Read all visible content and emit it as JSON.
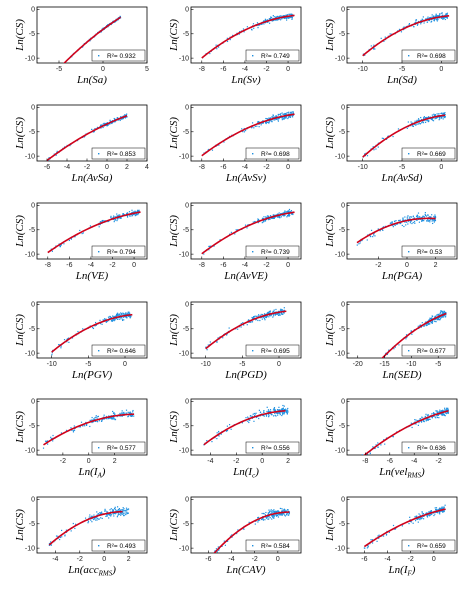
{
  "style": {
    "point_color": "#1e90e0",
    "fit_color": "#d0021b",
    "axis_color": "#000000"
  },
  "chart_data": [
    {
      "type": "scatter",
      "xlabel": "Ln(Sa)",
      "ylabel": "Ln(CS)",
      "r2_label": "R²= 0.932",
      "xticks": [
        -5,
        0,
        5
      ],
      "xlim": [
        -7.5,
        5
      ],
      "yticks": [
        -10,
        -5,
        0
      ],
      "ylim": [
        -11,
        0.5
      ],
      "fit": {
        "a": -4.1,
        "b": 1.35,
        "c": -0.05,
        "x_range": [
          -6,
          2
        ]
      },
      "cloud": {
        "x_min": -2,
        "x_max": 2,
        "noise": 0.25,
        "n": 160
      }
    },
    {
      "type": "scatter",
      "xlabel": "Ln(Sv)",
      "ylabel": "Ln(CS)",
      "r2_label": "R²= 0.749",
      "xticks": [
        -8,
        -6,
        -4,
        -2,
        0
      ],
      "xlim": [
        -9,
        1.2
      ],
      "yticks": [
        -10,
        -5,
        0
      ],
      "ylim": [
        -11,
        0.5
      ],
      "fit": {
        "a": -1.4,
        "b": 0.35,
        "c": -0.09,
        "x_range": [
          -8,
          0.6
        ]
      },
      "cloud": {
        "x_min": -3.5,
        "x_max": 0.5,
        "noise": 0.7,
        "n": 160
      }
    },
    {
      "type": "scatter",
      "xlabel": "Ln(Sd)",
      "ylabel": "Ln(CS)",
      "r2_label": "R²= 0.698",
      "xticks": [
        -10,
        -5,
        0
      ],
      "xlim": [
        -12,
        2
      ],
      "yticks": [
        -10,
        -5,
        0
      ],
      "ylim": [
        -11,
        0.5
      ],
      "fit": {
        "a": -1.5,
        "b": 0.25,
        "c": -0.055,
        "x_range": [
          -10,
          1
        ]
      },
      "cloud": {
        "x_min": -4.5,
        "x_max": 0.8,
        "noise": 0.8,
        "n": 160
      }
    },
    {
      "type": "scatter",
      "xlabel": "Ln(AvSa)",
      "ylabel": "Ln(CS)",
      "r2_label": "R²= 0.853",
      "xticks": [
        -6,
        -4,
        -2,
        0,
        2,
        4
      ],
      "xlim": [
        -7,
        4
      ],
      "yticks": [
        -10,
        -5,
        0
      ],
      "ylim": [
        -11,
        0.5
      ],
      "fit": {
        "a": -3.4,
        "b": 0.95,
        "c": -0.05,
        "x_range": [
          -6,
          2
        ]
      },
      "cloud": {
        "x_min": -2,
        "x_max": 2,
        "noise": 0.45,
        "n": 160
      }
    },
    {
      "type": "scatter",
      "xlabel": "Ln(AvSv)",
      "ylabel": "Ln(CS)",
      "r2_label": "R²= 0.698",
      "xticks": [
        -8,
        -6,
        -4,
        -2,
        0
      ],
      "xlim": [
        -9,
        1.2
      ],
      "yticks": [
        -10,
        -5,
        0
      ],
      "ylim": [
        -11,
        0.5
      ],
      "fit": {
        "a": -1.6,
        "b": 0.4,
        "c": -0.08,
        "x_range": [
          -8,
          0.6
        ]
      },
      "cloud": {
        "x_min": -3.5,
        "x_max": 0.5,
        "noise": 0.8,
        "n": 160
      }
    },
    {
      "type": "scatter",
      "xlabel": "Ln(AvSd)",
      "ylabel": "Ln(CS)",
      "r2_label": "R²= 0.669",
      "xticks": [
        -10,
        -5,
        0
      ],
      "xlim": [
        -12,
        2
      ],
      "yticks": [
        -10,
        -5,
        0
      ],
      "ylim": [
        -11,
        0.5
      ],
      "fit": {
        "a": -1.7,
        "b": 0.25,
        "c": -0.06,
        "x_range": [
          -10,
          0.5
        ]
      },
      "cloud": {
        "x_min": -4.5,
        "x_max": 0.5,
        "noise": 0.85,
        "n": 160
      }
    },
    {
      "type": "scatter",
      "xlabel": "Ln(VE)",
      "ylabel": "Ln(CS)",
      "r2_label": "R²= 0.794",
      "xticks": [
        -8,
        -6,
        -4,
        -2,
        0
      ],
      "xlim": [
        -9,
        1.2
      ],
      "yticks": [
        -10,
        -5,
        0
      ],
      "ylim": [
        -11,
        0.5
      ],
      "fit": {
        "a": -1.6,
        "b": 0.45,
        "c": -0.07,
        "x_range": [
          -8,
          0.6
        ]
      },
      "cloud": {
        "x_min": -3.5,
        "x_max": 0.5,
        "noise": 0.6,
        "n": 160
      }
    },
    {
      "type": "scatter",
      "xlabel": "Ln(AvVE)",
      "ylabel": "Ln(CS)",
      "r2_label": "R²= 0.739",
      "xticks": [
        -8,
        -6,
        -4,
        -2,
        0
      ],
      "xlim": [
        -9,
        1.2
      ],
      "yticks": [
        -10,
        -5,
        0
      ],
      "ylim": [
        -11,
        0.5
      ],
      "fit": {
        "a": -1.6,
        "b": 0.4,
        "c": -0.08,
        "x_range": [
          -8,
          0.6
        ]
      },
      "cloud": {
        "x_min": -3.5,
        "x_max": 0.5,
        "noise": 0.7,
        "n": 160
      }
    },
    {
      "type": "scatter",
      "xlabel": "Ln(PGA)",
      "ylabel": "Ln(CS)",
      "r2_label": "R²= 0.53",
      "xticks": [
        -2,
        0,
        2
      ],
      "xlim": [
        -4.2,
        3.5
      ],
      "yticks": [
        -10,
        -5,
        0
      ],
      "ylim": [
        -11,
        0.5
      ],
      "fit": {
        "a": -3.1,
        "b": 0.6,
        "c": -0.2,
        "x_range": [
          -3.5,
          2
        ]
      },
      "cloud": {
        "x_min": -1.5,
        "x_max": 2,
        "noise": 1.0,
        "n": 160
      }
    },
    {
      "type": "scatter",
      "xlabel": "Ln(PGV)",
      "ylabel": "Ln(CS)",
      "r2_label": "R²= 0.646",
      "xticks": [
        -10,
        -5,
        0
      ],
      "xlim": [
        -12,
        3
      ],
      "yticks": [
        -10,
        -5,
        0
      ],
      "ylim": [
        -11,
        0.5
      ],
      "fit": {
        "a": -2.3,
        "b": 0.25,
        "c": -0.05,
        "x_range": [
          -10,
          1
        ]
      },
      "cloud": {
        "x_min": -4.5,
        "x_max": 0.8,
        "noise": 0.85,
        "n": 160
      }
    },
    {
      "type": "scatter",
      "xlabel": "Ln(PGD)",
      "ylabel": "Ln(CS)",
      "r2_label": "R²= 0.695",
      "xticks": [
        -10,
        -5,
        0
      ],
      "xlim": [
        -12,
        3
      ],
      "yticks": [
        -10,
        -5,
        0
      ],
      "ylim": [
        -11,
        0.5
      ],
      "fit": {
        "a": -1.6,
        "b": 0.25,
        "c": -0.05,
        "x_range": [
          -10,
          1
        ]
      },
      "cloud": {
        "x_min": -5,
        "x_max": 0.8,
        "noise": 0.8,
        "n": 160
      }
    },
    {
      "type": "scatter",
      "xlabel": "Ln(SED)",
      "ylabel": "Ln(CS)",
      "r2_label": "R²= 0.677",
      "xticks": [
        -20,
        -15,
        -10,
        -5
      ],
      "xlim": [
        -22,
        -1.5
      ],
      "yticks": [
        -10,
        -5,
        0
      ],
      "ylim": [
        -11,
        0.5
      ],
      "fit": {
        "a": -0.8,
        "b": 0.2,
        "c": -0.03,
        "x_range": [
          -16,
          -3.5
        ]
      },
      "cloud": {
        "x_min": -9,
        "x_max": -3.5,
        "noise": 0.85,
        "n": 160
      }
    },
    {
      "type": "scatter",
      "xlabel": "Ln(I",
      "xsub": "A",
      "xsuffix": ")",
      "ylabel": "Ln(CS)",
      "r2_label": "R²= 0.577",
      "xticks": [
        -2,
        0,
        2
      ],
      "xlim": [
        -4,
        4.5
      ],
      "yticks": [
        -10,
        -5,
        0
      ],
      "ylim": [
        -11,
        0.5
      ],
      "fit": {
        "a": -4.3,
        "b": 0.9,
        "c": -0.12,
        "x_range": [
          -3.5,
          3.5
        ]
      },
      "cloud": {
        "x_min": -1,
        "x_max": 3.5,
        "noise": 0.95,
        "n": 160
      }
    },
    {
      "type": "scatter",
      "xlabel": "Ln(I",
      "xsub": "c",
      "xsuffix": ")",
      "ylabel": "Ln(CS)",
      "r2_label": "R²= 0.556",
      "xticks": [
        -4,
        -2,
        0,
        2
      ],
      "xlim": [
        -5.5,
        3
      ],
      "yticks": [
        -10,
        -5,
        0
      ],
      "ylim": [
        -11,
        0.5
      ],
      "fit": {
        "a": -2.7,
        "b": 0.7,
        "c": -0.15,
        "x_range": [
          -4.5,
          1.8
        ]
      },
      "cloud": {
        "x_min": -1.5,
        "x_max": 2,
        "noise": 1.0,
        "n": 160
      }
    },
    {
      "type": "scatter",
      "xlabel": "Ln(vel",
      "xsub": "RMS",
      "xsuffix": ")",
      "ylabel": "Ln(CS)",
      "r2_label": "R²= 0.636",
      "xticks": [
        -8,
        -6,
        -4,
        -2
      ],
      "xlim": [
        -9.5,
        -0.5
      ],
      "yticks": [
        -10,
        -5,
        0
      ],
      "ylim": [
        -11,
        0.5
      ],
      "fit": {
        "a": -1.3,
        "b": 0.4,
        "c": -0.1,
        "x_range": [
          -8.5,
          -1.2
        ]
      },
      "cloud": {
        "x_min": -5,
        "x_max": -1.2,
        "noise": 0.85,
        "n": 160
      }
    },
    {
      "type": "scatter",
      "xlabel": "Ln(acc",
      "xsub": "RMS",
      "xsuffix": ")",
      "ylabel": "Ln(CS)",
      "r2_label": "R²= 0.493",
      "xticks": [
        -4,
        -2,
        0,
        2
      ],
      "xlim": [
        -5.5,
        3.5
      ],
      "yticks": [
        -10,
        -5,
        0
      ],
      "ylim": [
        -11,
        0.5
      ],
      "fit": {
        "a": -3.0,
        "b": 0.6,
        "c": -0.18,
        "x_range": [
          -4.5,
          1.5
        ]
      },
      "cloud": {
        "x_min": -2,
        "x_max": 2,
        "noise": 1.1,
        "n": 160
      }
    },
    {
      "type": "scatter",
      "xlabel": "Ln(CAV)",
      "ylabel": "Ln(CS)",
      "r2_label": "R²= 0.584",
      "xticks": [
        -6,
        -4,
        -2,
        0
      ],
      "xlim": [
        -7.5,
        2
      ],
      "yticks": [
        -10,
        -5,
        0
      ],
      "ylim": [
        -11,
        0.5
      ],
      "fit": {
        "a": -2.8,
        "b": 0.4,
        "c": -0.2,
        "x_range": [
          -5.8,
          1
        ]
      },
      "cloud": {
        "x_min": -2.2,
        "x_max": 1,
        "noise": 1.0,
        "n": 160
      }
    },
    {
      "type": "scatter",
      "xlabel": "Ln(I",
      "xsub": "F",
      "xsuffix": ")",
      "ylabel": "Ln(CS)",
      "r2_label": "R²= 0.659",
      "xticks": [
        -6,
        -4,
        -2,
        0
      ],
      "xlim": [
        -7.5,
        2
      ],
      "yticks": [
        -10,
        -5,
        0
      ],
      "ylim": [
        -11,
        0.5
      ],
      "fit": {
        "a": -2.6,
        "b": 0.7,
        "c": -0.08,
        "x_range": [
          -6,
          1
        ]
      },
      "cloud": {
        "x_min": -2.5,
        "x_max": 1,
        "noise": 0.85,
        "n": 160
      }
    }
  ]
}
